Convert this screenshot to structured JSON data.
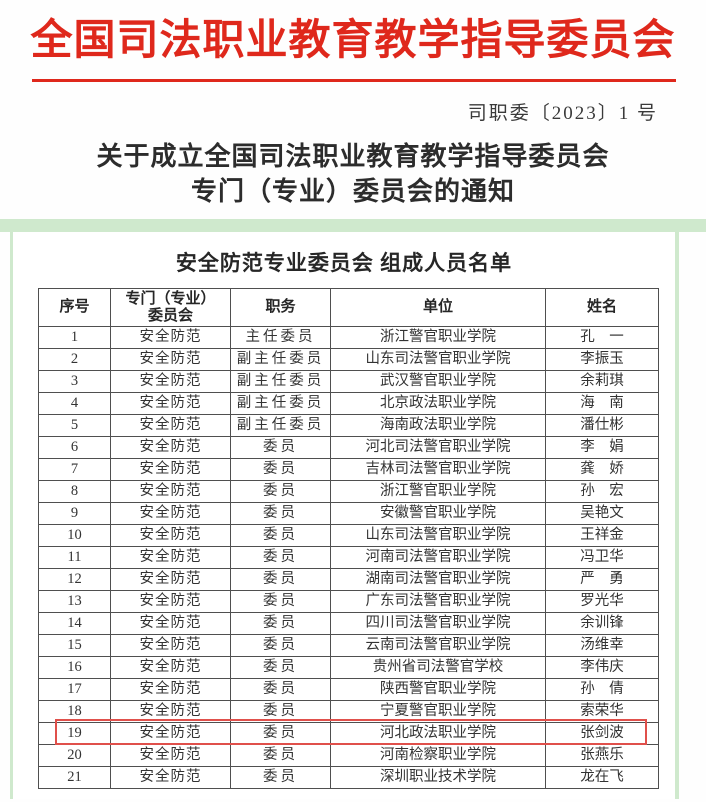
{
  "page": {
    "org_title": "全国司法职业教育教学指导委员会",
    "doc_number": "司职委〔2023〕1 号",
    "notice_title_line1": "关于成立全国司法职业教育教学指导委员会",
    "notice_title_line2": "专门（专业）委员会的通知"
  },
  "roster": {
    "title": "安全防范专业委员会 组成人员名单",
    "columns": [
      "序号",
      "专门（专业）\n委员会",
      "职务",
      "单位",
      "姓名"
    ],
    "highlight_row_number": "19",
    "rows": [
      {
        "no": "1",
        "committee": "安全防范",
        "role": "主任委员",
        "unit": "浙江警官职业学院",
        "name": "孔　一"
      },
      {
        "no": "2",
        "committee": "安全防范",
        "role": "副主任委员",
        "unit": "山东司法警官职业学院",
        "name": "李振玉"
      },
      {
        "no": "3",
        "committee": "安全防范",
        "role": "副主任委员",
        "unit": "武汉警官职业学院",
        "name": "余莉琪"
      },
      {
        "no": "4",
        "committee": "安全防范",
        "role": "副主任委员",
        "unit": "北京政法职业学院",
        "name": "海　南"
      },
      {
        "no": "5",
        "committee": "安全防范",
        "role": "副主任委员",
        "unit": "海南政法职业学院",
        "name": "潘仕彬"
      },
      {
        "no": "6",
        "committee": "安全防范",
        "role": "委员",
        "unit": "河北司法警官职业学院",
        "name": "李　娟"
      },
      {
        "no": "7",
        "committee": "安全防范",
        "role": "委员",
        "unit": "吉林司法警官职业学院",
        "name": "龚　娇"
      },
      {
        "no": "8",
        "committee": "安全防范",
        "role": "委员",
        "unit": "浙江警官职业学院",
        "name": "孙　宏"
      },
      {
        "no": "9",
        "committee": "安全防范",
        "role": "委员",
        "unit": "安徽警官职业学院",
        "name": "吴艳文"
      },
      {
        "no": "10",
        "committee": "安全防范",
        "role": "委员",
        "unit": "山东司法警官职业学院",
        "name": "王祥金"
      },
      {
        "no": "11",
        "committee": "安全防范",
        "role": "委员",
        "unit": "河南司法警官职业学院",
        "name": "冯卫华"
      },
      {
        "no": "12",
        "committee": "安全防范",
        "role": "委员",
        "unit": "湖南司法警官职业学院",
        "name": "严　勇"
      },
      {
        "no": "13",
        "committee": "安全防范",
        "role": "委员",
        "unit": "广东司法警官职业学院",
        "name": "罗光华"
      },
      {
        "no": "14",
        "committee": "安全防范",
        "role": "委员",
        "unit": "四川司法警官职业学院",
        "name": "余训锋"
      },
      {
        "no": "15",
        "committee": "安全防范",
        "role": "委员",
        "unit": "云南司法警官职业学院",
        "name": "汤维幸"
      },
      {
        "no": "16",
        "committee": "安全防范",
        "role": "委员",
        "unit": "贵州省司法警官学校",
        "name": "李伟庆"
      },
      {
        "no": "17",
        "committee": "安全防范",
        "role": "委员",
        "unit": "陕西警官职业学院",
        "name": "孙　倩"
      },
      {
        "no": "18",
        "committee": "安全防范",
        "role": "委员",
        "unit": "宁夏警官职业学院",
        "name": "索荣华"
      },
      {
        "no": "19",
        "committee": "安全防范",
        "role": "委员",
        "unit": "河北政法职业学院",
        "name": "张剑波"
      },
      {
        "no": "20",
        "committee": "安全防范",
        "role": "委员",
        "unit": "河南检察职业学院",
        "name": "张燕乐"
      },
      {
        "no": "21",
        "committee": "安全防范",
        "role": "委员",
        "unit": "深圳职业技术学院",
        "name": "龙在飞"
      }
    ]
  },
  "colors": {
    "accent_red": "#df281c",
    "highlight_red": "#e0504b",
    "frame_green": "#cfe9cd"
  }
}
